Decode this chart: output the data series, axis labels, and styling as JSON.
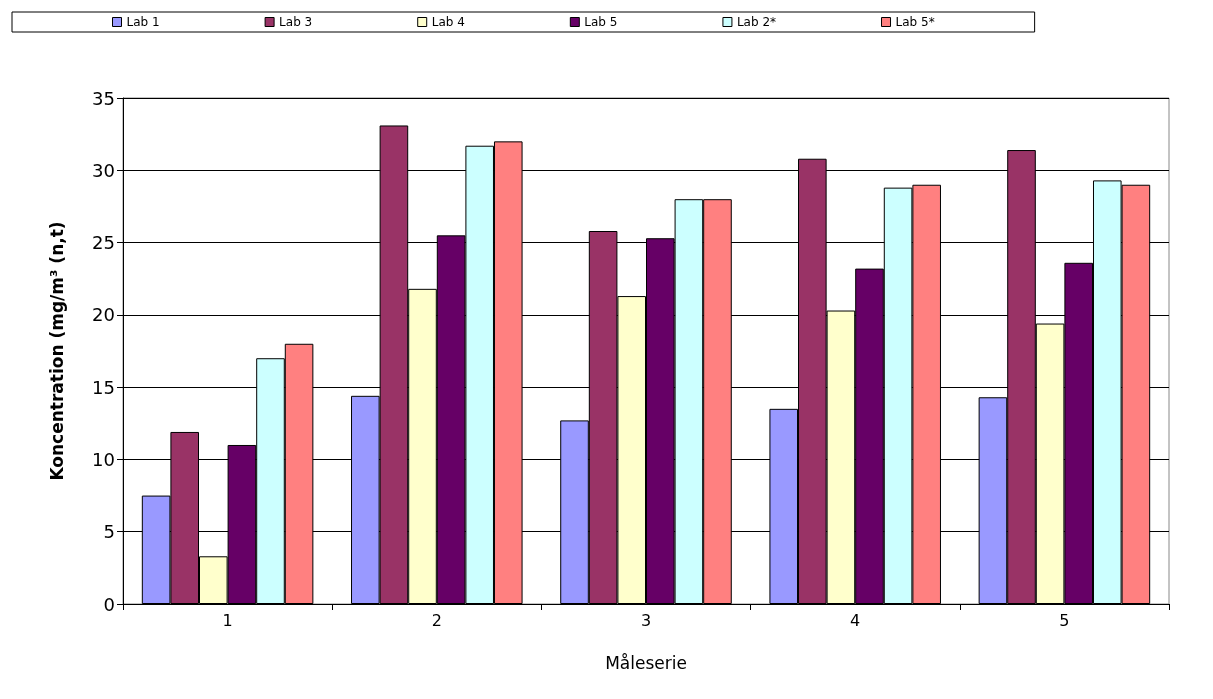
{
  "chart_data": {
    "type": "bar",
    "xlabel": "Måleserie",
    "ylabel": "Koncentration (mg/m³ (n,t)",
    "categories": [
      "1",
      "2",
      "3",
      "4",
      "5"
    ],
    "series": [
      {
        "name": "Lab 1",
        "color": "#9999ff",
        "values": [
          7.5,
          14.4,
          12.7,
          13.5,
          14.3
        ]
      },
      {
        "name": "Lab 3",
        "color": "#993366",
        "values": [
          11.9,
          33.1,
          25.8,
          30.8,
          31.4
        ]
      },
      {
        "name": "Lab 4",
        "color": "#ffffcc",
        "values": [
          3.3,
          21.8,
          21.3,
          20.3,
          19.4
        ]
      },
      {
        "name": "Lab 5",
        "color": "#660066",
        "values": [
          11.0,
          25.5,
          25.3,
          23.2,
          23.6
        ]
      },
      {
        "name": "Lab 2*",
        "color": "#ccffff",
        "values": [
          17.0,
          31.7,
          28.0,
          28.8,
          29.3
        ]
      },
      {
        "name": "Lab 5*",
        "color": "#ff8080",
        "values": [
          18.0,
          32.0,
          28.0,
          29.0,
          29.0
        ]
      }
    ],
    "ylim": [
      0,
      35
    ],
    "yticks": [
      0,
      5,
      10,
      15,
      20,
      25,
      30,
      35
    ],
    "grid": "y",
    "legend": "top"
  }
}
